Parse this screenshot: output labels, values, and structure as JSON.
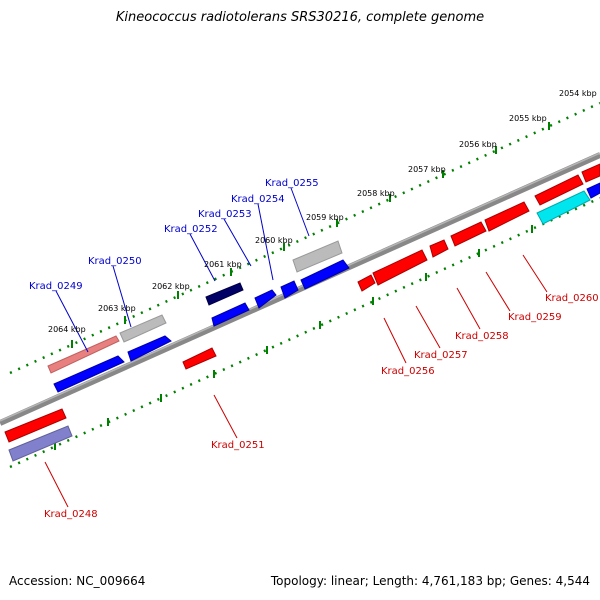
{
  "title": "Kineococcus radiotolerans SRS30216, complete genome",
  "footer": {
    "accession": "Accession: NC_009664",
    "topology": "Topology: linear; Length: 4,761,183 bp; Genes: 4,544"
  },
  "colors": {
    "backbone": "#888888",
    "ticks": "#008000",
    "forward_label": "#0000cc",
    "reverse_label": "#cc0000",
    "gene_blue": "#0000ff",
    "gene_red": "#ff0000",
    "gene_gray": "#bbbbbb",
    "gene_navy": "#000066",
    "gene_cyan": "#00e5ee",
    "gene_pink": "#e88080",
    "gene_lavender": "#8080cc"
  },
  "kbp_labels": [
    "2054 kbp",
    "2055 kbp",
    "2056 kbp",
    "2057 kbp",
    "2058 kbp",
    "2059 kbp",
    "2060 kbp",
    "2061 kbp",
    "2062 kbp",
    "2063 kbp",
    "2064 kbp"
  ],
  "gene_labels": [
    "Krad_0248",
    "Krad_0249",
    "Krad_0250",
    "Krad_0251",
    "Krad_0252",
    "Krad_0253",
    "Krad_0254",
    "Krad_0255",
    "Krad_0256",
    "Krad_0257",
    "Krad_0258",
    "Krad_0259",
    "Krad_0260"
  ]
}
